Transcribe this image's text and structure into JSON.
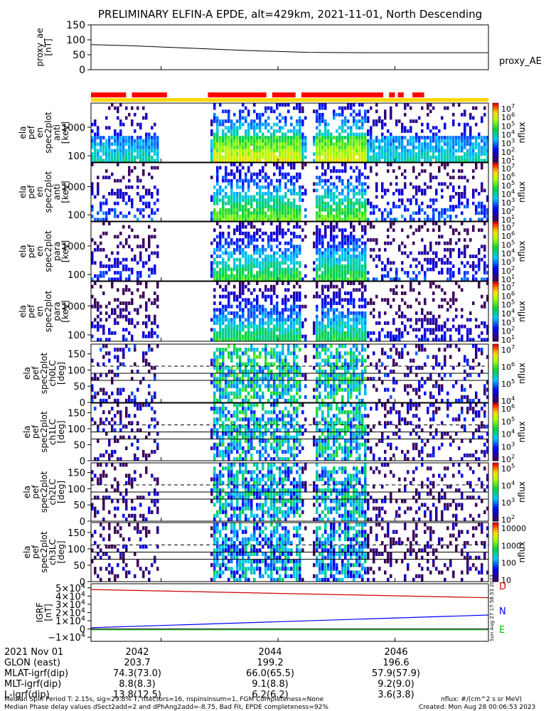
{
  "title": "PRELIMINARY ELFIN-A EPDE, alt=429km, 2021-11-01, North Descending",
  "colors": {
    "orbit_bar": "#ff0000",
    "fgm_bar": "#ffd700",
    "bfield_d": "#d00000",
    "bfield_n": "#0000ff",
    "bfield_e": "#00c000"
  },
  "panels": [
    {
      "kind": "line",
      "ylabel": [
        "proxy_ae",
        "[nT]"
      ],
      "ticks": [
        "150",
        "100",
        "50",
        "0"
      ],
      "legend": "proxy_AE"
    },
    {
      "kind": "spec",
      "ylabel": [
        "ela",
        "pef",
        "en",
        "spec2plot",
        "anti",
        "[keV]"
      ],
      "ticks": [
        "1000",
        "100"
      ],
      "cbar_ticks": [
        "10^7",
        "10^6",
        "10^5",
        "10^4",
        "10^3",
        "10^2",
        "10^1"
      ],
      "cbar_label": "nflux"
    },
    {
      "kind": "spec",
      "ylabel": [
        "ela",
        "pef",
        "en",
        "spec2plot",
        "anti",
        "[keV]"
      ],
      "ticks": [
        "1000",
        "100"
      ],
      "cbar_ticks": [
        "10^7",
        "10^6",
        "10^5",
        "10^4",
        "10^3",
        "10^2",
        "10^1"
      ],
      "cbar_label": "nflux"
    },
    {
      "kind": "spec",
      "ylabel": [
        "ela",
        "pef",
        "en",
        "spec2plot",
        "para",
        "[keV]"
      ],
      "ticks": [
        "1000",
        "100"
      ],
      "cbar_ticks": [
        "10^7",
        "10^6",
        "10^5",
        "10^4",
        "10^3",
        "10^2",
        "10^1"
      ],
      "cbar_label": "nflux"
    },
    {
      "kind": "spec",
      "ylabel": [
        "ela",
        "pef",
        "en",
        "spec2plot",
        "para",
        "[keV]"
      ],
      "ticks": [
        "1000",
        "100"
      ],
      "cbar_ticks": [
        "10^7",
        "10^6",
        "10^5",
        "10^4",
        "10^3",
        "10^2",
        "10^1"
      ],
      "cbar_label": "nflux"
    },
    {
      "kind": "pa",
      "ylabel": [
        "ela",
        "pef",
        "spec2plot",
        "ch0LC",
        "[deg]"
      ],
      "ticks": [
        "150",
        "100",
        "50",
        "0"
      ],
      "cbar_ticks": [
        "10^7",
        "10^6",
        "10^5",
        "10^4"
      ],
      "cbar_label": "nflux"
    },
    {
      "kind": "pa",
      "ylabel": [
        "ela",
        "pef",
        "spec2plot",
        "ch1LC",
        "[deg]"
      ],
      "ticks": [
        "150",
        "100",
        "50",
        "0"
      ],
      "cbar_ticks": [
        "10^6",
        "10^5",
        "10^4",
        "10^3",
        "10^2"
      ],
      "cbar_label": "nflux"
    },
    {
      "kind": "pa",
      "ylabel": [
        "ela",
        "pef",
        "spec2plot",
        "ch2LC",
        "[deg]"
      ],
      "ticks": [
        "150",
        "100",
        "50",
        "0"
      ],
      "cbar_ticks": [
        "10^5",
        "10^4",
        "10^3",
        "10^2"
      ],
      "cbar_label": "nflux"
    },
    {
      "kind": "pa",
      "ylabel": [
        "ela",
        "pef",
        "spec2plot",
        "ch3LC",
        "[deg]"
      ],
      "ticks": [
        "150",
        "100",
        "50",
        "0"
      ],
      "cbar_ticks": [
        "10000",
        "1000",
        "100",
        "10"
      ],
      "cbar_label": "nflux"
    },
    {
      "kind": "bfield",
      "ylabel": [
        "IGRF",
        "[nT]"
      ],
      "ticks": [
        "5×10^4",
        "4×10^4",
        "3×10^4",
        "2×10^4",
        "1×10^4",
        "0",
        "−1×10^4"
      ],
      "legend": [
        "D",
        "N",
        "E"
      ],
      "stamp": "Sun Aug 27 17:58:53 2023"
    }
  ],
  "xaxis": {
    "tick_labels": [
      "2042",
      "2044",
      "2046"
    ],
    "rows": [
      {
        "name": "2021 Nov 01",
        "values": [
          "2042",
          "2044",
          "2046"
        ]
      },
      {
        "name": "GLON (east)",
        "values": [
          "203.7",
          "199.2",
          "196.6"
        ]
      },
      {
        "name": "MLAT-igrf(dip)",
        "values": [
          "74.3(73.0)",
          "66.0(65.5)",
          "57.9(57.9)"
        ]
      },
      {
        "name": "MLT-igrf(dip)",
        "values": [
          "8.8(8.3)",
          "9.1(8.8)",
          "9.2(9.0)"
        ]
      },
      {
        "name": "L-igrf(dip)",
        "values": [
          "13.8(12.5)",
          "6.2(6.2)",
          "3.6(3.8)"
        ]
      }
    ]
  },
  "footer": {
    "line1": "Median Spin Period T: 2.15s, sig=29.8% T, nsectors=16, nspinsinsum=1, FGM Completeness=None",
    "line2": "Median Phase delay values dSect2add=2 and dPhAng2add=-8.75, Bad Fit, EPDE completeness=92%",
    "units": "nflux: #/(cm^2 s sr MeV)",
    "created": "Created: Mon Aug 28 00:06:53 2023"
  },
  "chart_data": {
    "type": "line",
    "title": "PRELIMINARY ELFIN-A EPDE, alt=429km, 2021-11-01, North Descending",
    "proxy_ae": {
      "x": [
        2040.8,
        2041.5,
        2042.5,
        2043.5,
        2044.5,
        2045.5,
        2046.5,
        2047.6
      ],
      "values": [
        84,
        80,
        72,
        64,
        58,
        57,
        57,
        57
      ],
      "ylim": [
        0,
        150
      ]
    },
    "igrf": {
      "x": [
        2040.8,
        2047.6
      ],
      "series": [
        {
          "name": "D",
          "values": [
            48000,
            38000
          ]
        },
        {
          "name": "N",
          "values": [
            1500,
            17000
          ]
        },
        {
          "name": "E",
          "values": [
            -1000,
            -1000
          ]
        }
      ],
      "ylim": [
        -15000,
        55000
      ]
    },
    "orbit_segments_red": [
      [
        2040.8,
        2041.4
      ],
      [
        2041.5,
        2042.1
      ],
      [
        2042.8,
        2043.8
      ],
      [
        2043.9,
        2044.3
      ],
      [
        2044.4,
        2045.8
      ],
      [
        2045.9,
        2046.0
      ],
      [
        2046.05,
        2046.15
      ],
      [
        2046.3,
        2046.5
      ]
    ],
    "spectrogram_energy_range_keV": [
      60,
      7000
    ],
    "pitch_angle_range_deg": [
      0,
      180
    ]
  }
}
